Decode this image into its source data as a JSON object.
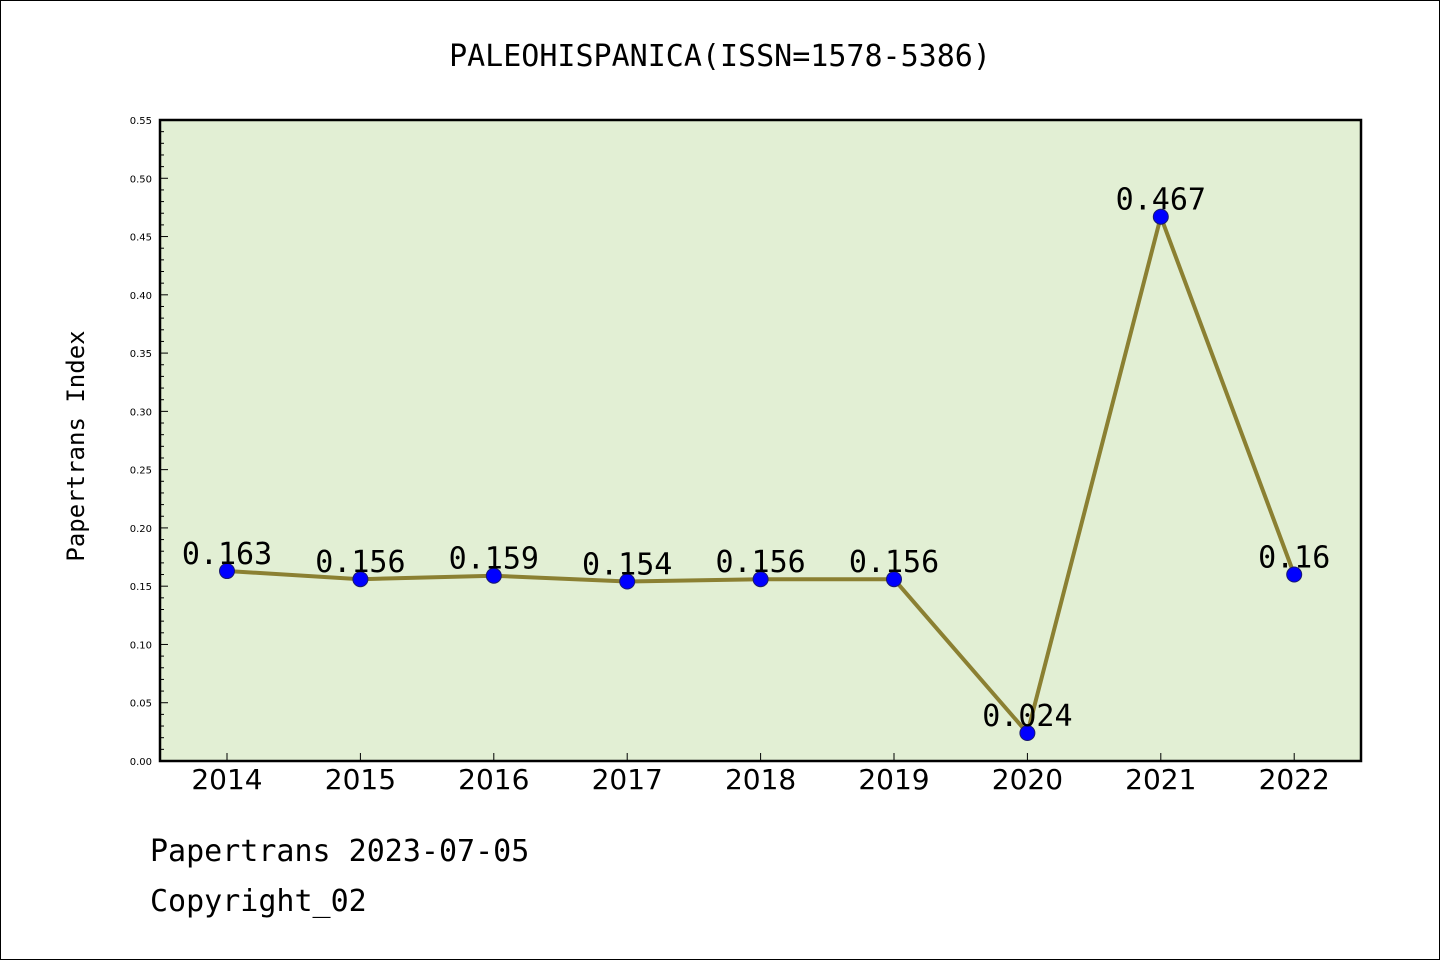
{
  "chart_data": {
    "type": "line",
    "title": "PALEOHISPANICA(ISSN=1578-5386)",
    "ylabel": "Papertrans Index",
    "xlabel": "",
    "categories": [
      "2014",
      "2015",
      "2016",
      "2017",
      "2018",
      "2019",
      "2020",
      "2021",
      "2022"
    ],
    "values": [
      0.163,
      0.156,
      0.159,
      0.154,
      0.156,
      0.156,
      0.024,
      0.467,
      0.16
    ],
    "data_labels": [
      "0.163",
      "0.156",
      "0.159",
      "0.154",
      "0.156",
      "0.156",
      "0.024",
      "0.467",
      "0.16"
    ],
    "ylim": [
      0,
      0.55
    ],
    "yticks": [
      "0.00",
      "0.05",
      "0.10",
      "0.15",
      "0.20",
      "0.25",
      "0.30",
      "0.35",
      "0.40",
      "0.45",
      "0.50",
      "0.55"
    ],
    "grid": false,
    "legend": "none",
    "colors": {
      "plot_background": "#e2efd4",
      "line": "#8b8032",
      "marker": "#0000ff",
      "marker_edge": "#1a1a6e"
    }
  },
  "footer": {
    "date_line": "Papertrans 2023-07-05",
    "copyright": "Copyright_02"
  }
}
